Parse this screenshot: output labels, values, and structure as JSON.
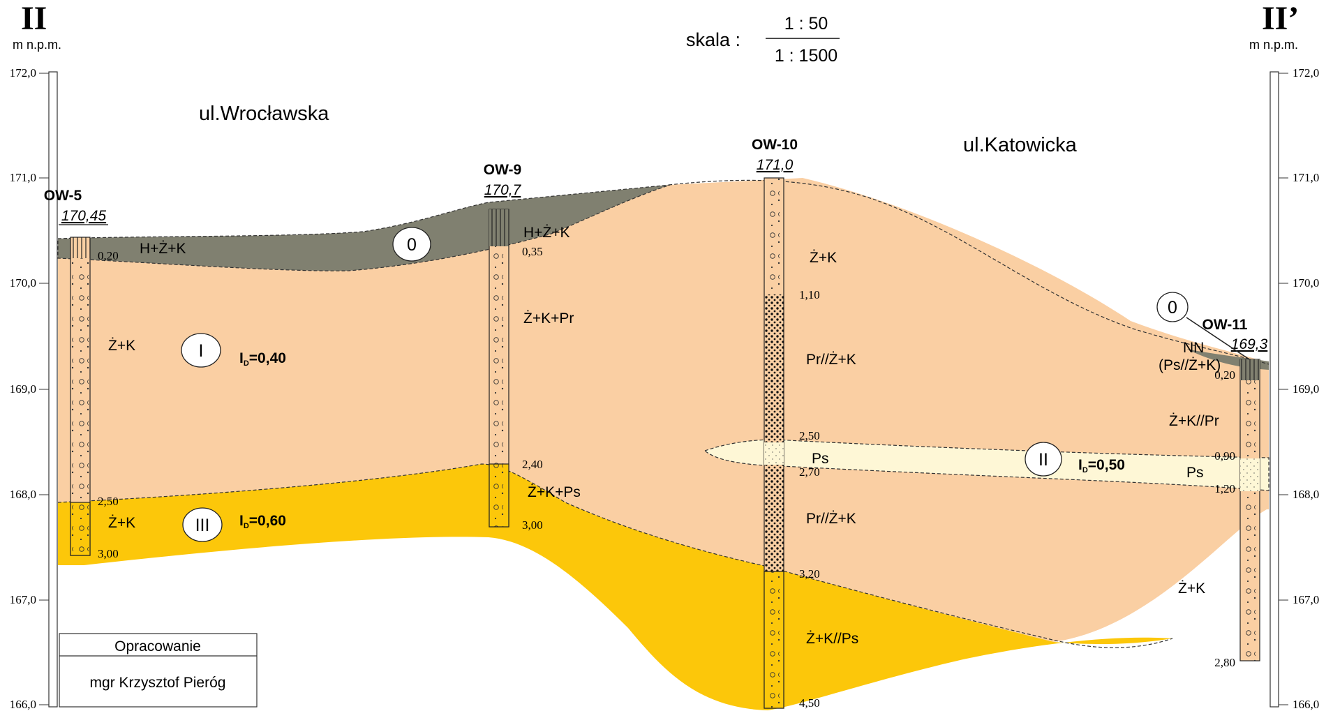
{
  "section": {
    "left_id": "II",
    "right_id": "II’",
    "unit_left": "m n.p.m.",
    "unit_right": "m n.p.m.",
    "scale_label": "skala :",
    "scale_vertical": "1 : 50",
    "scale_horizontal": "1 : 1500"
  },
  "elevation_ticks": [
    "172,0",
    "171,0",
    "170,0",
    "169,0",
    "168,0",
    "167,0",
    "166,0"
  ],
  "streets": {
    "left": "ul.Wrocławska",
    "right": "ul.Katowicka"
  },
  "boreholes": {
    "ow5": {
      "name": "OW-5",
      "elevation": "170,45",
      "depths": [
        "0,20",
        "2,50",
        "3,00"
      ],
      "soils": [
        "H+Ż+K",
        "Ż+K",
        "Ż+K"
      ]
    },
    "ow9": {
      "name": "OW-9",
      "elevation": "170,7",
      "depths": [
        "0,35",
        "2,40",
        "3,00"
      ],
      "soils": [
        "H+Ż+K",
        "Ż+K+Pr",
        "Ż+K+Ps"
      ]
    },
    "ow10": {
      "name": "OW-10",
      "elevation": "171,0",
      "depths": [
        "1,10",
        "2,50",
        "2,70",
        "3,20",
        "4,50"
      ],
      "soils": [
        "Ż+K",
        "Pr//Ż+K",
        "Ps",
        "Pr//Ż+K",
        "Ż+K//Ps"
      ]
    },
    "ow11": {
      "name": "OW-11",
      "elevation": "169,3",
      "depths": [
        "0,20",
        "0,90",
        "1,20",
        "2,80"
      ],
      "soils": [
        "NN",
        "(Ps//Ż+K)",
        "Ż+K//Pr",
        "Ps",
        "Ż+K"
      ]
    }
  },
  "layers": {
    "zero_left": "0",
    "zero_right": "0",
    "layer_I": "I",
    "layer_II": "II",
    "layer_III": "III",
    "id_I_prefix": "I",
    "id_I_sub": "D",
    "id_I_value": "=0,40",
    "id_II_prefix": "I",
    "id_II_sub": "D",
    "id_II_value": "=0,50",
    "id_III_prefix": "I",
    "id_III_sub": "D",
    "id_III_value": "=0,60"
  },
  "colors": {
    "topsoil": "#808070",
    "layer_I": "#FACFA3",
    "layer_II": "#FEF7D6",
    "layer_III": "#FCC70A"
  },
  "credits": {
    "title": "Opracowanie",
    "author": "mgr Krzysztof Pieróg"
  }
}
